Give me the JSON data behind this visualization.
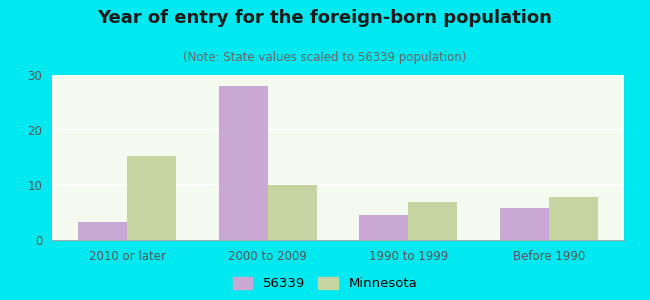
{
  "title": "Year of entry for the foreign-born population",
  "subtitle": "(Note: State values scaled to 56339 population)",
  "categories": [
    "2010 or later",
    "2000 to 2009",
    "1990 to 1999",
    "Before 1990"
  ],
  "values_56339": [
    3.3,
    28.0,
    4.6,
    5.8
  ],
  "values_minnesota": [
    15.3,
    10.0,
    6.9,
    7.8
  ],
  "color_56339": "#c9a8d4",
  "color_minnesota": "#c5d4a0",
  "background_outer": "#00e8f0",
  "background_inner": "#f5faf0",
  "ylim": [
    0,
    30
  ],
  "yticks": [
    0,
    10,
    20,
    30
  ],
  "legend_label_56339": "56339",
  "legend_label_minnesota": "Minnesota",
  "bar_width": 0.35,
  "title_fontsize": 13,
  "subtitle_fontsize": 8.5,
  "tick_fontsize": 8.5,
  "legend_fontsize": 9.5
}
